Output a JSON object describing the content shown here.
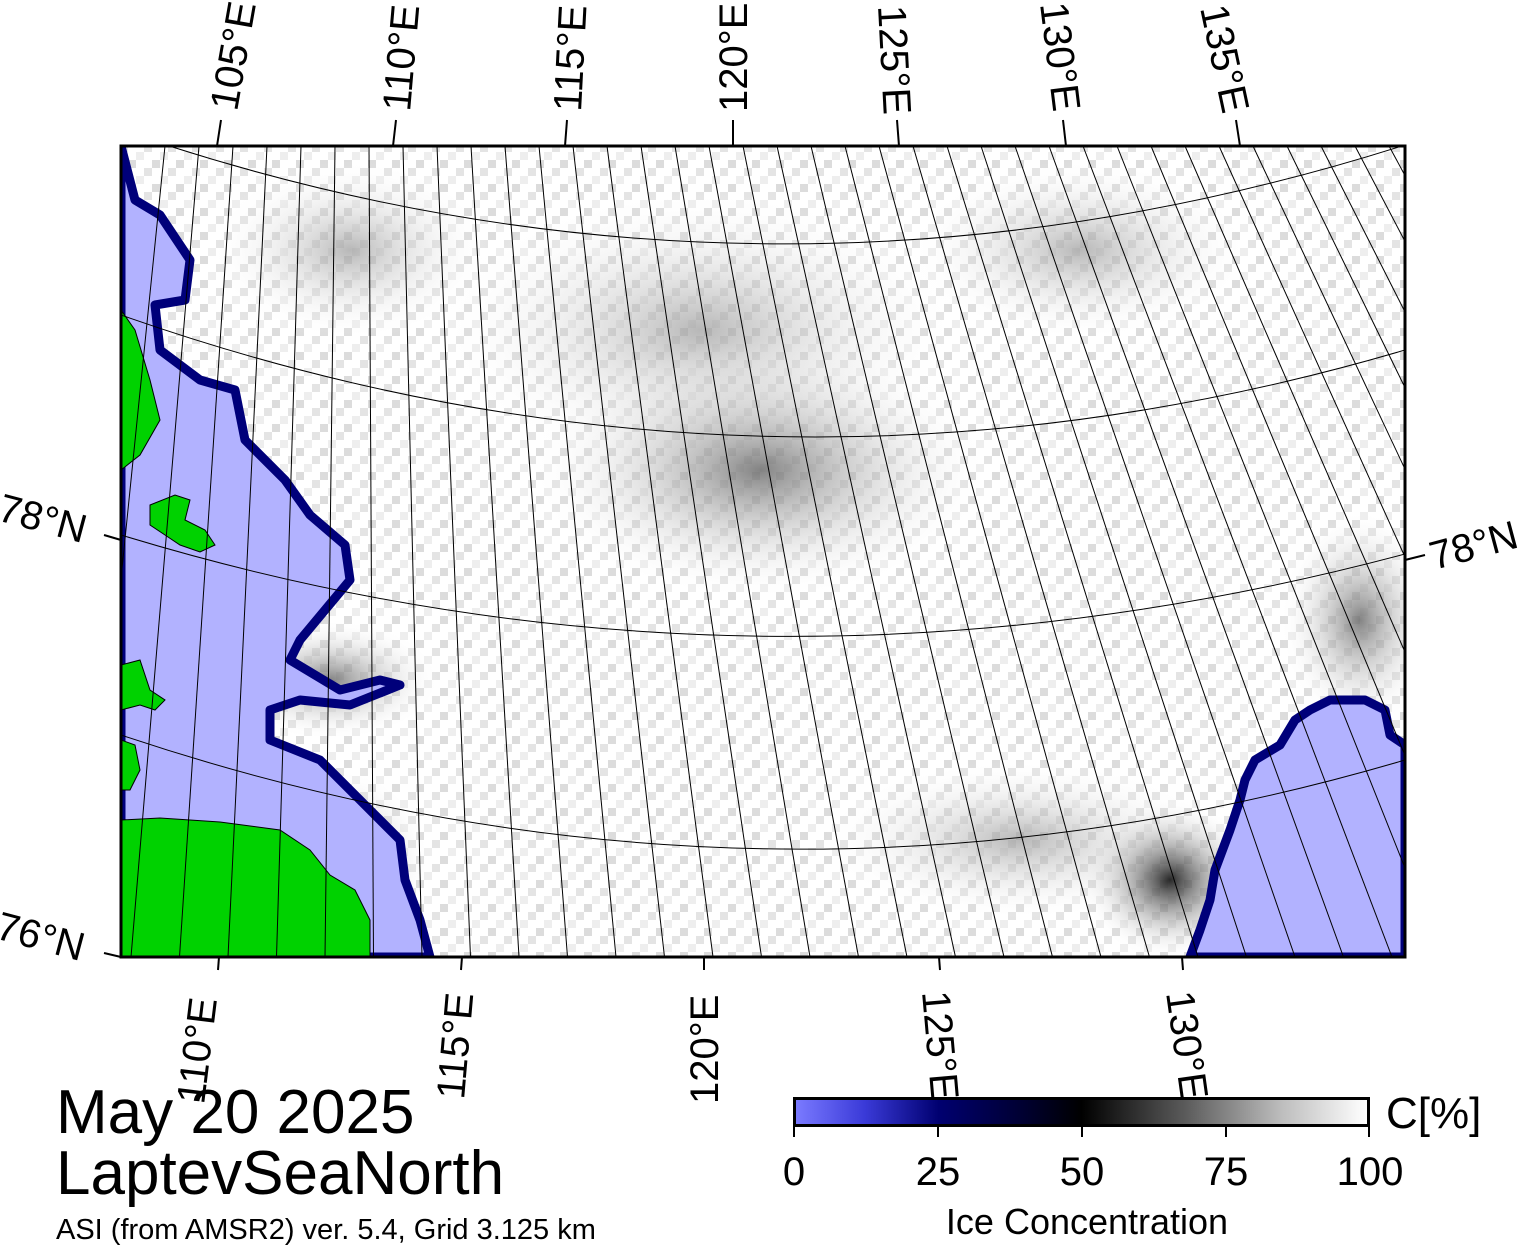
{
  "map": {
    "top_lon_labels": [
      "105°E",
      "110°E",
      "115°E",
      "120°E",
      "125°E",
      "130°E",
      "135°E"
    ],
    "bottom_lon_labels": [
      "110°E",
      "115°E",
      "120°E",
      "125°E",
      "130°E"
    ],
    "lat_labels": [
      "78°N",
      "78°N",
      "76°N"
    ],
    "colors": {
      "land": "#00d200",
      "open_water": "#b2b2ff",
      "ice_edge": "#00007a",
      "ice_full": "#ffffff",
      "ice_gray": "#bcbcbc",
      "coast_gray": "#7f7f7f"
    }
  },
  "caption": {
    "date": "May 20 2025",
    "region": "LaptevSeaNorth",
    "source": "ASI (from AMSR2) ver. 5.4,  Grid 3.125 km"
  },
  "colorbar": {
    "unit": "C[%]",
    "title": "Ice Concentration",
    "ticks": [
      "0",
      "25",
      "50",
      "75",
      "100"
    ]
  }
}
